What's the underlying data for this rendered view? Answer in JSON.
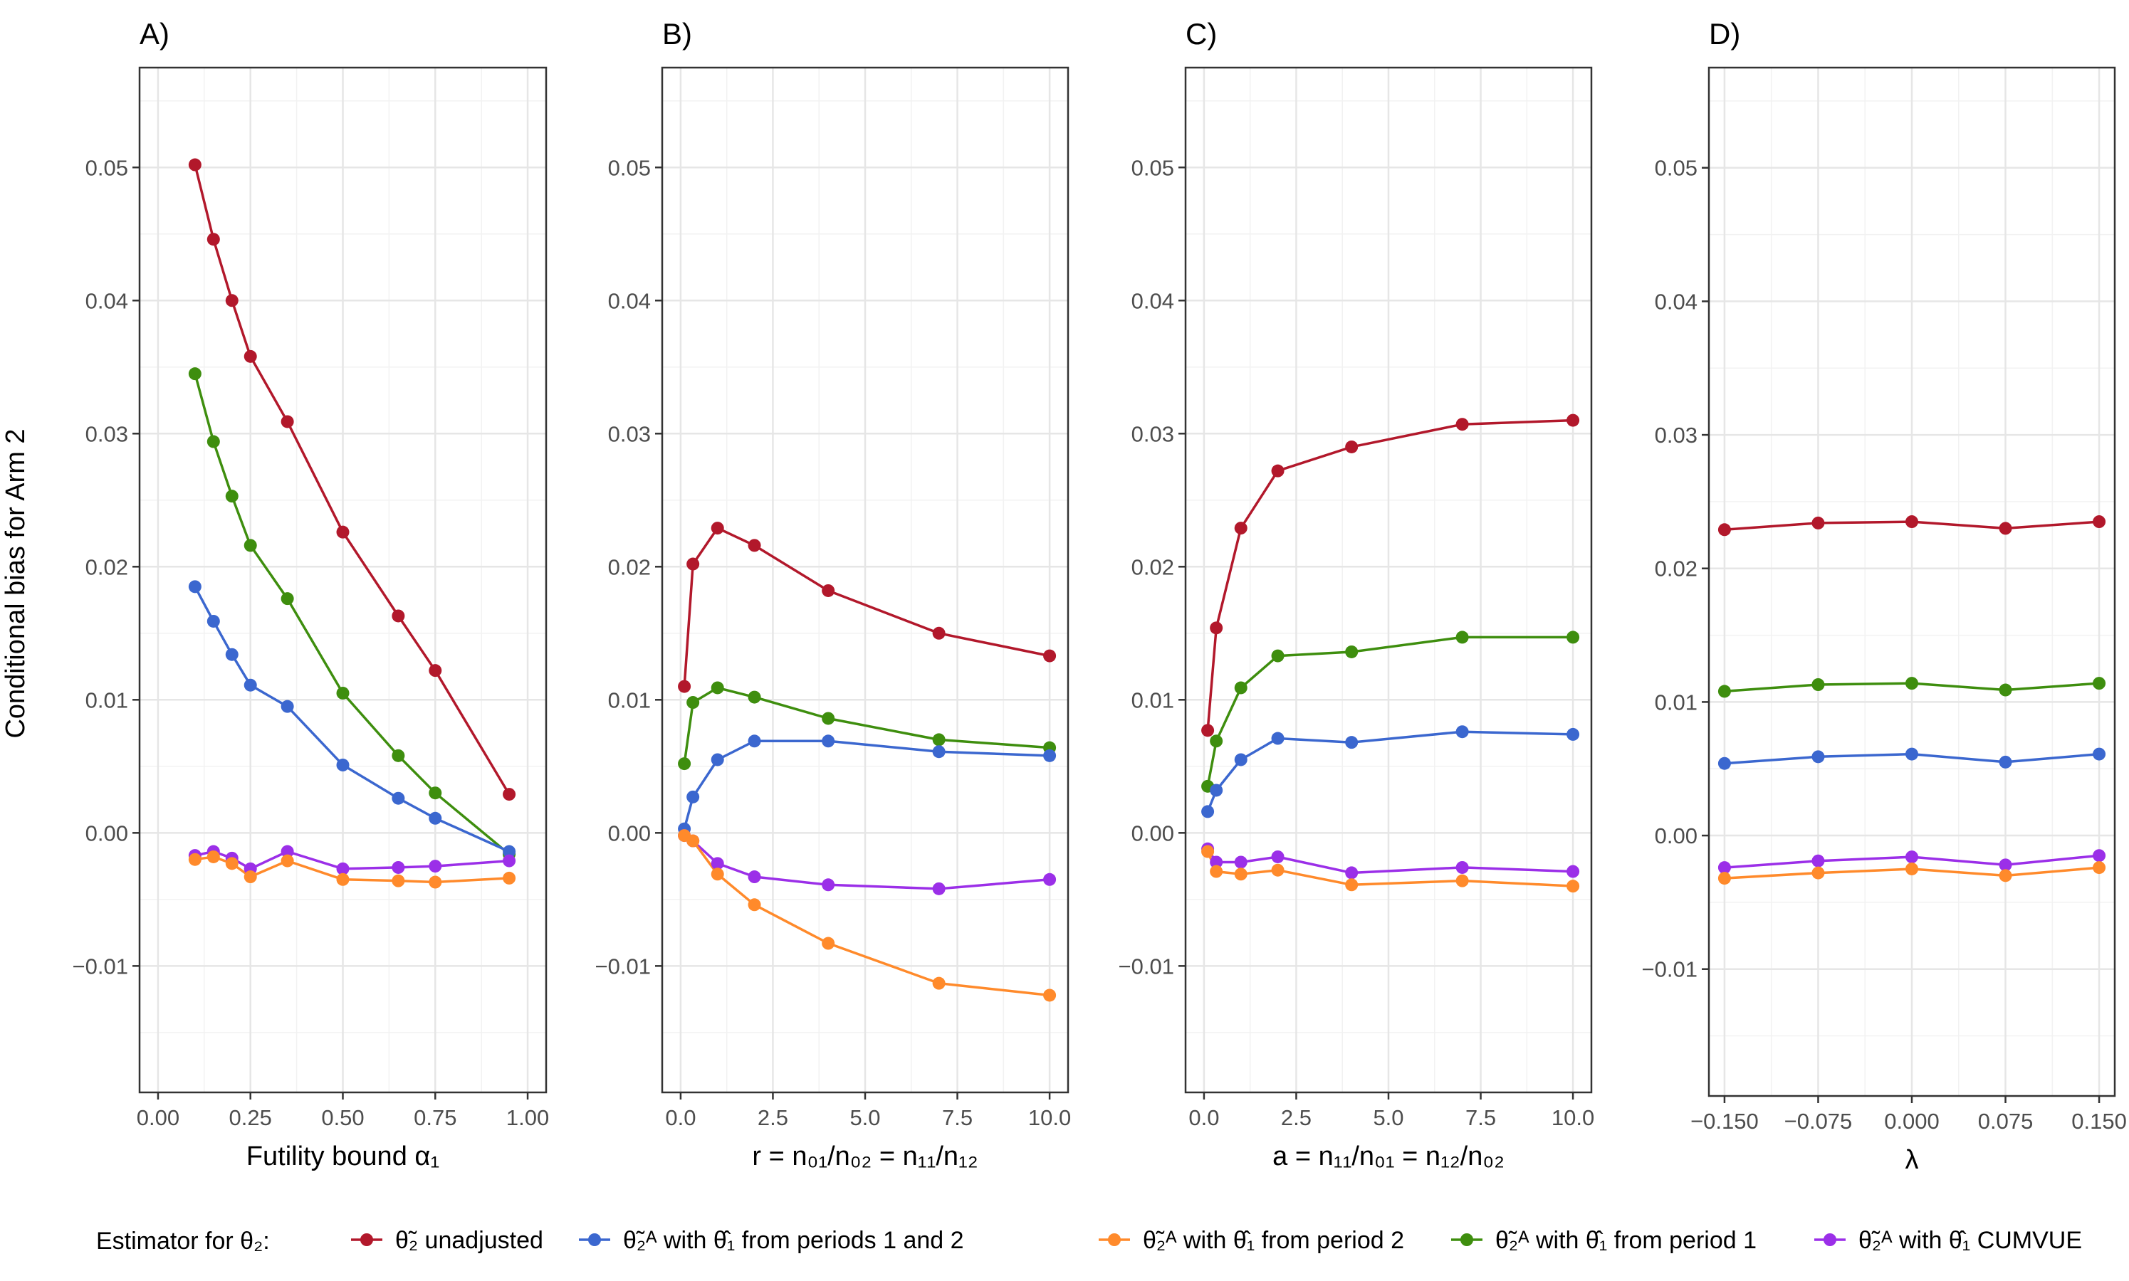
{
  "chart_data": {
    "type": "line",
    "ylabel": "Conditional bias for Arm 2",
    "ylim": [
      -0.0195,
      0.0575
    ],
    "yticks": [
      -0.01,
      0.0,
      0.01,
      0.02,
      0.03,
      0.04,
      0.05
    ],
    "ytick_labels": [
      "−0.01",
      "0.00",
      "0.01",
      "0.02",
      "0.03",
      "0.04",
      "0.05"
    ],
    "legend": {
      "title": "Estimator for θ₂:",
      "entries": [
        {
          "id": "unadjusted",
          "label": "θ̃₂ unadjusted",
          "color": "#B2182B"
        },
        {
          "id": "periods12",
          "label": "θ̃₂ᴬ with θ̂₁ from periods 1 and 2",
          "color": "#3B67CF"
        },
        {
          "id": "period2",
          "label": "θ̃₂ᴬ with θ̂₁ from period 2",
          "color": "#FF8A2B"
        },
        {
          "id": "period1",
          "label": "θ̃₂ᴬ with θ̂₁ from period 1",
          "color": "#3E8E0E"
        },
        {
          "id": "cumvue",
          "label": "θ̃₂ᴬ with θ̂₁ CUMVUE",
          "color": "#9B2FE8"
        }
      ]
    },
    "panels": [
      {
        "tag": "A)",
        "xlabel": "Futility bound α₁",
        "xlim": [
          -0.05,
          1.05
        ],
        "xticks": [
          0,
          0.25,
          0.5,
          0.75,
          1.0
        ],
        "xtick_labels": [
          "0.00",
          "0.25",
          "0.50",
          "0.75",
          "1.00"
        ],
        "series": [
          {
            "id": "unadjusted",
            "x": [
              0.1,
              0.15,
              0.2,
              0.25,
              0.35,
              0.5,
              0.65,
              0.75,
              0.95
            ],
            "y": [
              0.0502,
              0.0446,
              0.04,
              0.0358,
              0.0309,
              0.0226,
              0.0163,
              0.0122,
              0.0029
            ]
          },
          {
            "id": "period1",
            "x": [
              0.1,
              0.15,
              0.2,
              0.25,
              0.35,
              0.5,
              0.65,
              0.75,
              0.95
            ],
            "y": [
              0.0345,
              0.0294,
              0.0253,
              0.0216,
              0.0176,
              0.0105,
              0.0058,
              0.003,
              -0.0016
            ]
          },
          {
            "id": "periods12",
            "x": [
              0.1,
              0.15,
              0.2,
              0.25,
              0.35,
              0.5,
              0.65,
              0.75,
              0.95
            ],
            "y": [
              0.0185,
              0.0159,
              0.0134,
              0.0111,
              0.0095,
              0.0051,
              0.0026,
              0.0011,
              -0.0014
            ]
          },
          {
            "id": "cumvue",
            "x": [
              0.1,
              0.15,
              0.2,
              0.25,
              0.35,
              0.5,
              0.65,
              0.75,
              0.95
            ],
            "y": [
              -0.0017,
              -0.0014,
              -0.0019,
              -0.0027,
              -0.0014,
              -0.0027,
              -0.0026,
              -0.0025,
              -0.0021
            ]
          },
          {
            "id": "period2",
            "x": [
              0.1,
              0.15,
              0.2,
              0.25,
              0.35,
              0.5,
              0.65,
              0.75,
              0.95
            ],
            "y": [
              -0.002,
              -0.0018,
              -0.0023,
              -0.0033,
              -0.0021,
              -0.0035,
              -0.0036,
              -0.0037,
              -0.0034
            ]
          }
        ]
      },
      {
        "tag": "B)",
        "xlabel": "r = n₀₁/n₀₂ = n₁₁/n₁₂",
        "xlim": [
          -0.5,
          10.5
        ],
        "xticks": [
          0,
          2.5,
          5,
          7.5,
          10
        ],
        "xtick_labels": [
          "0.0",
          "2.5",
          "5.0",
          "7.5",
          "10.0"
        ],
        "series": [
          {
            "id": "unadjusted",
            "x": [
              0.1,
              0.333,
              1,
              2,
              4,
              7,
              10
            ],
            "y": [
              0.011,
              0.0202,
              0.0229,
              0.0216,
              0.0182,
              0.015,
              0.0133
            ]
          },
          {
            "id": "period1",
            "x": [
              0.1,
              0.333,
              1,
              2,
              4,
              7,
              10
            ],
            "y": [
              0.0052,
              0.0098,
              0.0109,
              0.0102,
              0.0086,
              0.007,
              0.0064
            ]
          },
          {
            "id": "periods12",
            "x": [
              0.1,
              0.333,
              1,
              2,
              4,
              7,
              10
            ],
            "y": [
              0.0003,
              0.0027,
              0.0055,
              0.0069,
              0.0069,
              0.0061,
              0.0058
            ]
          },
          {
            "id": "cumvue",
            "x": [
              0.1,
              0.333,
              1,
              2,
              4,
              7,
              10
            ],
            "y": [
              -0.0002,
              -0.0006,
              -0.0023,
              -0.0033,
              -0.0039,
              -0.0042,
              -0.0035
            ]
          },
          {
            "id": "period2",
            "x": [
              0.1,
              0.333,
              1,
              2,
              4,
              7,
              10
            ],
            "y": [
              -0.0002,
              -0.0006,
              -0.0031,
              -0.0054,
              -0.0083,
              -0.0113,
              -0.0122
            ]
          }
        ]
      },
      {
        "tag": "C)",
        "xlabel": "a = n₁₁/n₀₁ = n₁₂/n₀₂",
        "xlim": [
          -0.5,
          10.5
        ],
        "xticks": [
          0,
          2.5,
          5,
          7.5,
          10
        ],
        "xtick_labels": [
          "0.0",
          "2.5",
          "5.0",
          "7.5",
          "10.0"
        ],
        "series": [
          {
            "id": "unadjusted",
            "x": [
              0.1,
              0.333,
              1,
              2,
              4,
              7,
              10
            ],
            "y": [
              0.0077,
              0.0154,
              0.0229,
              0.0272,
              0.029,
              0.0307,
              0.031
            ]
          },
          {
            "id": "period1",
            "x": [
              0.1,
              0.333,
              1,
              2,
              4,
              7,
              10
            ],
            "y": [
              0.0035,
              0.0069,
              0.0109,
              0.0133,
              0.0136,
              0.0147,
              0.0147
            ]
          },
          {
            "id": "periods12",
            "x": [
              0.1,
              0.333,
              1,
              2,
              4,
              7,
              10
            ],
            "y": [
              0.0016,
              0.0032,
              0.0055,
              0.0071,
              0.0068,
              0.0076,
              0.0074
            ]
          },
          {
            "id": "cumvue",
            "x": [
              0.1,
              0.333,
              1,
              2,
              4,
              7,
              10
            ],
            "y": [
              -0.0012,
              -0.0022,
              -0.0022,
              -0.0018,
              -0.003,
              -0.0026,
              -0.0029
            ]
          },
          {
            "id": "period2",
            "x": [
              0.1,
              0.333,
              1,
              2,
              4,
              7,
              10
            ],
            "y": [
              -0.0014,
              -0.0029,
              -0.0031,
              -0.0028,
              -0.0039,
              -0.0036,
              -0.004
            ]
          }
        ]
      },
      {
        "tag": "D)",
        "xlabel": "λ",
        "xlim": [
          -0.1625,
          0.1625
        ],
        "xticks": [
          -0.15,
          -0.075,
          0,
          0.075,
          0.15
        ],
        "xtick_labels": [
          "−0.150",
          "−0.075",
          "0.000",
          "0.075",
          "0.150"
        ],
        "series": [
          {
            "id": "unadjusted",
            "x": [
              -0.15,
              -0.075,
              0,
              0.075,
              0.15
            ],
            "y": [
              0.0229,
              0.0234,
              0.0235,
              0.023,
              0.0235
            ]
          },
          {
            "id": "period1",
            "x": [
              -0.15,
              -0.075,
              0,
              0.075,
              0.15
            ],
            "y": [
              0.0108,
              0.0113,
              0.0114,
              0.0109,
              0.0114
            ]
          },
          {
            "id": "periods12",
            "x": [
              -0.15,
              -0.075,
              0,
              0.075,
              0.15
            ],
            "y": [
              0.0054,
              0.0059,
              0.0061,
              0.0055,
              0.0061
            ]
          },
          {
            "id": "cumvue",
            "x": [
              -0.15,
              -0.075,
              0,
              0.075,
              0.15
            ],
            "y": [
              -0.0024,
              -0.0019,
              -0.0016,
              -0.0022,
              -0.0015
            ]
          },
          {
            "id": "period2",
            "x": [
              -0.15,
              -0.075,
              0,
              0.075,
              0.15
            ],
            "y": [
              -0.0032,
              -0.0028,
              -0.0025,
              -0.003,
              -0.0024
            ]
          }
        ]
      }
    ]
  }
}
